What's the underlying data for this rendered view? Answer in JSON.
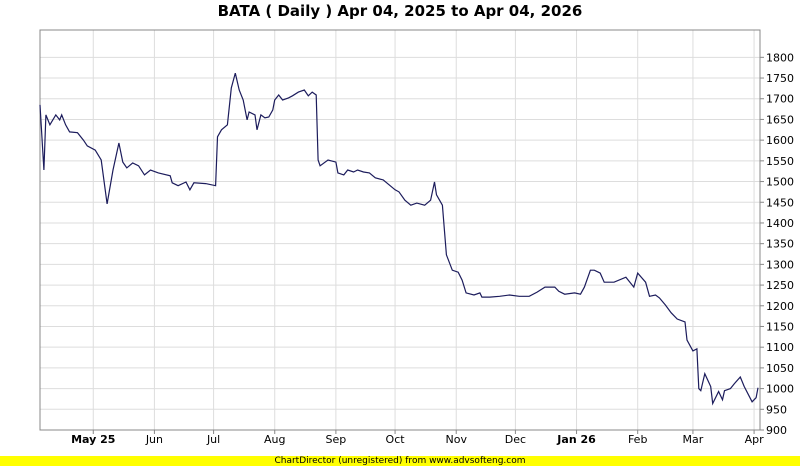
{
  "chart_data": {
    "type": "line",
    "title": "BATA ( Daily ) Apr 04, 2025 to Apr 04, 2026",
    "xlabel": "",
    "ylabel": "",
    "xlim": [
      "2025-04-04",
      "2026-04-04"
    ],
    "ylim": [
      900,
      1866
    ],
    "y_ticks": [
      900,
      950,
      1000,
      1050,
      1100,
      1150,
      1200,
      1250,
      1300,
      1350,
      1400,
      1450,
      1500,
      1550,
      1600,
      1650,
      1700,
      1750,
      1800
    ],
    "x_ticks": [
      {
        "date": "2025-05-01",
        "label": "May 25",
        "bold": true
      },
      {
        "date": "2025-06-01",
        "label": "Jun",
        "bold": false
      },
      {
        "date": "2025-07-01",
        "label": "Jul",
        "bold": false
      },
      {
        "date": "2025-08-01",
        "label": "Aug",
        "bold": false
      },
      {
        "date": "2025-09-01",
        "label": "Sep",
        "bold": false
      },
      {
        "date": "2025-10-01",
        "label": "Oct",
        "bold": false
      },
      {
        "date": "2025-11-01",
        "label": "Nov",
        "bold": false
      },
      {
        "date": "2025-12-01",
        "label": "Dec",
        "bold": false
      },
      {
        "date": "2026-01-01",
        "label": "Jan 26",
        "bold": true
      },
      {
        "date": "2026-02-01",
        "label": "Feb",
        "bold": false
      },
      {
        "date": "2026-03-01",
        "label": "Mar",
        "bold": false
      },
      {
        "date": "2026-04-01",
        "label": "Apr",
        "bold": false
      }
    ],
    "grid": true,
    "y_axis_side": "right",
    "line_color": "#1c1c5c",
    "grid_color": "#dddddd",
    "points": [
      [
        "2025-04-04",
        1685
      ],
      [
        "2025-04-06",
        1528
      ],
      [
        "2025-04-07",
        1661
      ],
      [
        "2025-04-09",
        1637
      ],
      [
        "2025-04-12",
        1661
      ],
      [
        "2025-04-14",
        1649
      ],
      [
        "2025-04-15",
        1661
      ],
      [
        "2025-04-17",
        1637
      ],
      [
        "2025-04-19",
        1620
      ],
      [
        "2025-04-23",
        1618
      ],
      [
        "2025-04-26",
        1600
      ],
      [
        "2025-04-28",
        1586
      ],
      [
        "2025-05-02",
        1576
      ],
      [
        "2025-05-05",
        1552
      ],
      [
        "2025-05-08",
        1446
      ],
      [
        "2025-05-11",
        1528
      ],
      [
        "2025-05-14",
        1593
      ],
      [
        "2025-05-16",
        1547
      ],
      [
        "2025-05-18",
        1533
      ],
      [
        "2025-05-21",
        1545
      ],
      [
        "2025-05-24",
        1538
      ],
      [
        "2025-05-27",
        1516
      ],
      [
        "2025-05-30",
        1528
      ],
      [
        "2025-06-03",
        1521
      ],
      [
        "2025-06-09",
        1514
      ],
      [
        "2025-06-10",
        1497
      ],
      [
        "2025-06-13",
        1490
      ],
      [
        "2025-06-17",
        1499
      ],
      [
        "2025-06-19",
        1480
      ],
      [
        "2025-06-21",
        1497
      ],
      [
        "2025-06-27",
        1495
      ],
      [
        "2025-07-02",
        1490
      ],
      [
        "2025-07-03",
        1608
      ],
      [
        "2025-07-05",
        1625
      ],
      [
        "2025-07-08",
        1637
      ],
      [
        "2025-07-10",
        1726
      ],
      [
        "2025-07-12",
        1762
      ],
      [
        "2025-07-14",
        1721
      ],
      [
        "2025-07-16",
        1697
      ],
      [
        "2025-07-18",
        1649
      ],
      [
        "2025-07-19",
        1668
      ],
      [
        "2025-07-22",
        1661
      ],
      [
        "2025-07-23",
        1625
      ],
      [
        "2025-07-25",
        1661
      ],
      [
        "2025-07-27",
        1654
      ],
      [
        "2025-07-29",
        1656
      ],
      [
        "2025-07-31",
        1673
      ],
      [
        "2025-08-01",
        1697
      ],
      [
        "2025-08-03",
        1709
      ],
      [
        "2025-08-05",
        1697
      ],
      [
        "2025-08-08",
        1702
      ],
      [
        "2025-08-10",
        1707
      ],
      [
        "2025-08-13",
        1716
      ],
      [
        "2025-08-16",
        1721
      ],
      [
        "2025-08-18",
        1707
      ],
      [
        "2025-08-20",
        1716
      ],
      [
        "2025-08-22",
        1709
      ],
      [
        "2025-08-23",
        1552
      ],
      [
        "2025-08-24",
        1538
      ],
      [
        "2025-08-28",
        1552
      ],
      [
        "2025-09-01",
        1547
      ],
      [
        "2025-09-02",
        1521
      ],
      [
        "2025-09-05",
        1516
      ],
      [
        "2025-09-07",
        1528
      ],
      [
        "2025-09-10",
        1523
      ],
      [
        "2025-09-12",
        1528
      ],
      [
        "2025-09-15",
        1523
      ],
      [
        "2025-09-18",
        1521
      ],
      [
        "2025-09-21",
        1509
      ],
      [
        "2025-09-25",
        1504
      ],
      [
        "2025-10-01",
        1480
      ],
      [
        "2025-10-03",
        1475
      ],
      [
        "2025-10-06",
        1455
      ],
      [
        "2025-10-09",
        1443
      ],
      [
        "2025-10-12",
        1448
      ],
      [
        "2025-10-16",
        1443
      ],
      [
        "2025-10-19",
        1455
      ],
      [
        "2025-10-21",
        1499
      ],
      [
        "2025-10-22",
        1468
      ],
      [
        "2025-10-25",
        1443
      ],
      [
        "2025-10-27",
        1323
      ],
      [
        "2025-10-30",
        1286
      ],
      [
        "2025-11-02",
        1281
      ],
      [
        "2025-11-04",
        1262
      ],
      [
        "2025-11-06",
        1231
      ],
      [
        "2025-11-10",
        1226
      ],
      [
        "2025-11-13",
        1231
      ],
      [
        "2025-11-14",
        1221
      ],
      [
        "2025-11-18",
        1221
      ],
      [
        "2025-11-23",
        1223
      ],
      [
        "2025-11-28",
        1226
      ],
      [
        "2025-12-03",
        1223
      ],
      [
        "2025-12-08",
        1223
      ],
      [
        "2025-12-12",
        1233
      ],
      [
        "2025-12-16",
        1245
      ],
      [
        "2025-12-21",
        1245
      ],
      [
        "2025-12-23",
        1235
      ],
      [
        "2025-12-26",
        1228
      ],
      [
        "2025-12-31",
        1231
      ],
      [
        "2026-01-03",
        1228
      ],
      [
        "2026-01-05",
        1245
      ],
      [
        "2026-01-08",
        1286
      ],
      [
        "2026-01-10",
        1286
      ],
      [
        "2026-01-13",
        1279
      ],
      [
        "2026-01-15",
        1257
      ],
      [
        "2026-01-20",
        1257
      ],
      [
        "2026-01-26",
        1269
      ],
      [
        "2026-01-30",
        1245
      ],
      [
        "2026-02-01",
        1279
      ],
      [
        "2026-02-05",
        1257
      ],
      [
        "2026-02-07",
        1223
      ],
      [
        "2026-02-10",
        1226
      ],
      [
        "2026-02-12",
        1219
      ],
      [
        "2026-02-15",
        1202
      ],
      [
        "2026-02-18",
        1183
      ],
      [
        "2026-02-21",
        1168
      ],
      [
        "2026-02-25",
        1161
      ],
      [
        "2026-02-26",
        1117
      ],
      [
        "2026-03-01",
        1091
      ],
      [
        "2026-03-03",
        1096
      ],
      [
        "2026-03-04",
        1000
      ],
      [
        "2026-03-05",
        995
      ],
      [
        "2026-03-07",
        1036
      ],
      [
        "2026-03-10",
        1005
      ],
      [
        "2026-03-11",
        964
      ],
      [
        "2026-03-14",
        993
      ],
      [
        "2026-03-16",
        973
      ],
      [
        "2026-03-17",
        995
      ],
      [
        "2026-03-20",
        1000
      ],
      [
        "2026-03-22",
        1012
      ],
      [
        "2026-03-25",
        1028
      ],
      [
        "2026-03-27",
        1005
      ],
      [
        "2026-03-31",
        968
      ],
      [
        "2026-04-02",
        978
      ],
      [
        "2026-04-03",
        1002
      ]
    ]
  },
  "footer": {
    "text": "ChartDirector (unregistered) from www.advsofteng.com"
  }
}
